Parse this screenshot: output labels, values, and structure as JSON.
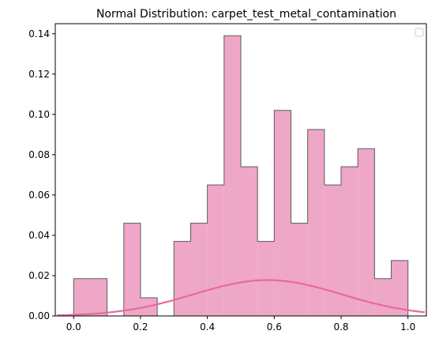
{
  "chart_data": {
    "type": "bar",
    "title": "Normal Distribution: carpet_test_metal_contamination",
    "xlabel": "",
    "ylabel": "",
    "xlim": [
      -0.055,
      1.055
    ],
    "ylim": [
      0,
      0.145
    ],
    "x_ticks": [
      0.0,
      0.2,
      0.4,
      0.6,
      0.8,
      1.0
    ],
    "x_tick_labels": [
      "0.0",
      "0.2",
      "0.4",
      "0.6",
      "0.8",
      "1.0"
    ],
    "y_ticks": [
      0.0,
      0.02,
      0.04,
      0.06,
      0.08,
      0.1,
      0.12,
      0.14
    ],
    "y_tick_labels": [
      "0.00",
      "0.02",
      "0.04",
      "0.06",
      "0.08",
      "0.10",
      "0.12",
      "0.14"
    ],
    "bins": [
      {
        "x0": 0.0,
        "x1": 0.05,
        "value": 0.0185
      },
      {
        "x0": 0.05,
        "x1": 0.1,
        "value": 0.0185
      },
      {
        "x0": 0.1,
        "x1": 0.15,
        "value": 0.0
      },
      {
        "x0": 0.15,
        "x1": 0.2,
        "value": 0.046
      },
      {
        "x0": 0.2,
        "x1": 0.25,
        "value": 0.009
      },
      {
        "x0": 0.25,
        "x1": 0.3,
        "value": 0.0
      },
      {
        "x0": 0.3,
        "x1": 0.35,
        "value": 0.037
      },
      {
        "x0": 0.35,
        "x1": 0.4,
        "value": 0.046
      },
      {
        "x0": 0.4,
        "x1": 0.45,
        "value": 0.065
      },
      {
        "x0": 0.45,
        "x1": 0.5,
        "value": 0.139
      },
      {
        "x0": 0.5,
        "x1": 0.55,
        "value": 0.074
      },
      {
        "x0": 0.55,
        "x1": 0.6,
        "value": 0.037
      },
      {
        "x0": 0.6,
        "x1": 0.65,
        "value": 0.102
      },
      {
        "x0": 0.65,
        "x1": 0.7,
        "value": 0.046
      },
      {
        "x0": 0.7,
        "x1": 0.75,
        "value": 0.0925
      },
      {
        "x0": 0.75,
        "x1": 0.8,
        "value": 0.065
      },
      {
        "x0": 0.8,
        "x1": 0.85,
        "value": 0.074
      },
      {
        "x0": 0.85,
        "x1": 0.9,
        "value": 0.083
      },
      {
        "x0": 0.9,
        "x1": 0.95,
        "value": 0.0185
      },
      {
        "x0": 0.95,
        "x1": 1.0,
        "value": 0.0275
      }
    ],
    "curve": {
      "type": "line",
      "mean": 0.58,
      "std": 0.22,
      "peak": 0.0178,
      "x_range": [
        -0.05,
        1.05
      ]
    },
    "colors": {
      "bar_fill": "#efa7c7",
      "bar_edge": "#5a5a5a",
      "curve": "#e66a9c"
    },
    "grid": false,
    "legend": "top-right (empty)"
  }
}
